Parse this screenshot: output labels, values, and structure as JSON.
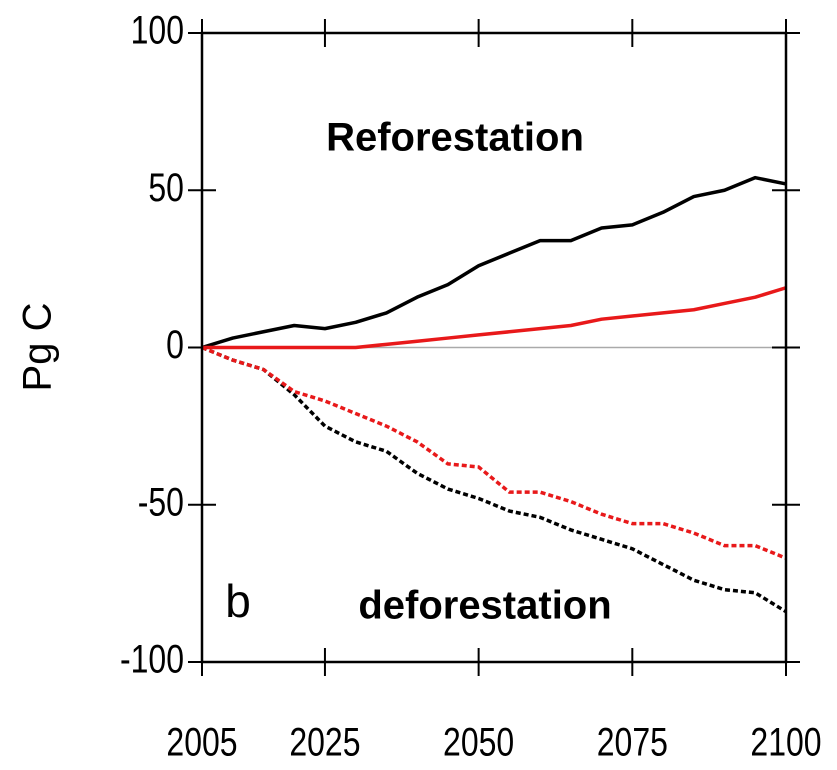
{
  "chart_data": {
    "type": "line",
    "ylabel": "Pg C",
    "annotations": [
      "Reforestation",
      "deforestation",
      "b"
    ],
    "x": [
      2005,
      2010,
      2015,
      2020,
      2025,
      2030,
      2035,
      2040,
      2045,
      2050,
      2055,
      2060,
      2065,
      2070,
      2075,
      2080,
      2085,
      2090,
      2095,
      2100
    ],
    "series": [
      {
        "color": "#000000",
        "style": "solid",
        "values": [
          0,
          3,
          5,
          7,
          6,
          8,
          11,
          16,
          20,
          26,
          30,
          34,
          34,
          38,
          39,
          43,
          48,
          50,
          54,
          52
        ]
      },
      {
        "color": "#e8191a",
        "style": "solid",
        "values": [
          0,
          0,
          0,
          0,
          0,
          0,
          1,
          2,
          3,
          4,
          5,
          6,
          7,
          9,
          10,
          11,
          12,
          14,
          16,
          19
        ]
      },
      {
        "color": "#000000",
        "style": "dotted",
        "values": [
          0,
          -4,
          -7,
          -15,
          -25,
          -30,
          -33,
          -40,
          -45,
          -48,
          -52,
          -54,
          -58,
          -61,
          -64,
          -69,
          -74,
          -77,
          -78,
          -84
        ]
      },
      {
        "color": "#e8191a",
        "style": "dotted",
        "values": [
          0,
          -4,
          -7,
          -14,
          -17,
          -21,
          -25,
          -30,
          -37,
          -38,
          -46,
          -46,
          -49,
          -53,
          -56,
          -56,
          -59,
          -63,
          -63,
          -67
        ]
      }
    ],
    "xlim": [
      2005,
      2100
    ],
    "xticks": [
      2005,
      2025,
      2050,
      2075,
      2100
    ],
    "ylim": [
      -100,
      100
    ],
    "yticks": [
      100,
      50,
      0,
      -50,
      -100
    ],
    "zero_line": true
  }
}
